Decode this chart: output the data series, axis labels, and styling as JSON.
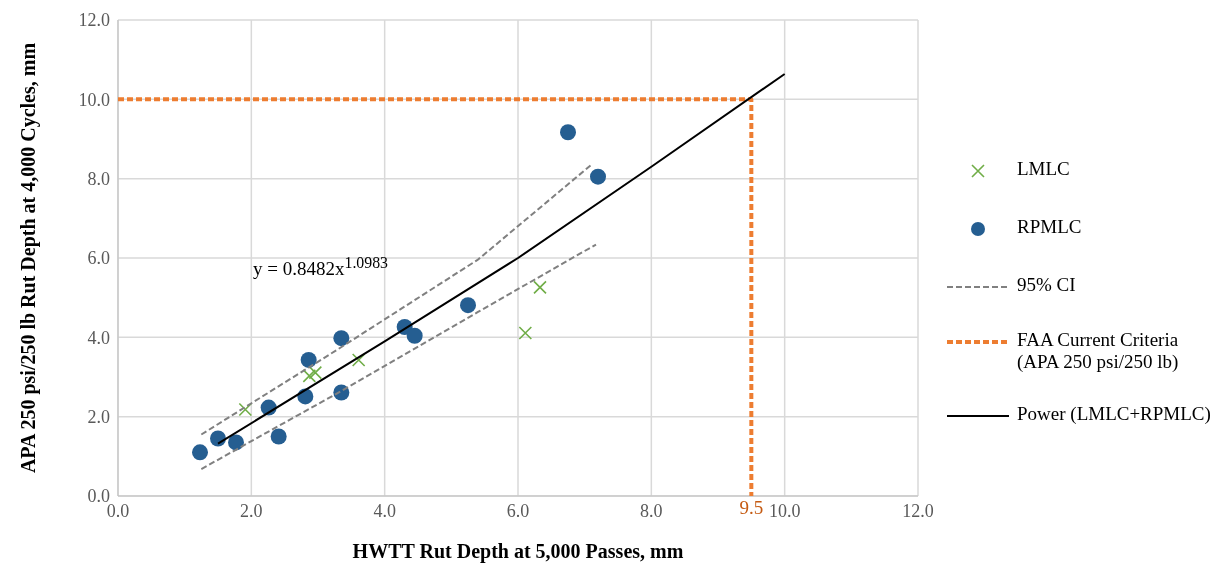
{
  "chart_data": {
    "type": "scatter",
    "xlabel": "HWTT Rut Depth at 5,000 Passes, mm",
    "ylabel": "APA 250 psi/250 lb Rut Depth at 4,000 Cycles, mm",
    "xlim": [
      0,
      12
    ],
    "ylim": [
      0,
      12
    ],
    "xticks": [
      {
        "value": 0,
        "label": "0.0"
      },
      {
        "value": 2,
        "label": "2.0"
      },
      {
        "value": 4,
        "label": "4.0"
      },
      {
        "value": 6,
        "label": "6.0"
      },
      {
        "value": 8,
        "label": "8.0"
      },
      {
        "value": 10,
        "label": "10.0"
      },
      {
        "value": 12,
        "label": "12.0"
      }
    ],
    "yticks": [
      {
        "value": 0,
        "label": "0.0"
      },
      {
        "value": 2,
        "label": "2.0"
      },
      {
        "value": 4,
        "label": "4.0"
      },
      {
        "value": 6,
        "label": "6.0"
      },
      {
        "value": 8,
        "label": "8.0"
      },
      {
        "value": 10,
        "label": "10.0"
      },
      {
        "value": 12,
        "label": "12.0"
      }
    ],
    "grid": true,
    "legend": "right",
    "series": [
      {
        "name": "LMLC",
        "marker": "cross",
        "color": "#70ad47",
        "x": [
          1.91,
          2.87,
          2.96,
          3.61,
          6.11,
          6.33
        ],
        "values": [
          2.18,
          3.03,
          3.11,
          3.43,
          4.11,
          5.26
        ]
      },
      {
        "name": "RPMLC",
        "marker": "circle",
        "color": "#255e91",
        "x": [
          1.23,
          1.5,
          1.77,
          2.26,
          2.41,
          2.81,
          2.86,
          3.35,
          3.35,
          4.3,
          4.45,
          5.25,
          6.75,
          7.2
        ],
        "values": [
          1.1,
          1.45,
          1.35,
          2.23,
          1.5,
          2.51,
          3.43,
          3.98,
          2.61,
          4.26,
          4.04,
          4.81,
          9.17,
          8.05
        ]
      },
      {
        "name": "95% CI",
        "type": "line",
        "line_style": "dashed",
        "marker": "none",
        "color": "#808080",
        "x": [
          1.25,
          3.3,
          5.4,
          7.1
        ],
        "values": [
          1.55,
          3.7,
          5.96,
          8.35
        ]
      },
      {
        "type": "line",
        "line_style": "dashed",
        "marker": "none",
        "color": "#808080",
        "x": [
          1.25,
          3.3,
          5.4,
          7.17
        ],
        "values": [
          0.68,
          2.6,
          4.64,
          6.34
        ]
      },
      {
        "name": "FAA Current Criteria (APA 250 psi/250 lb)",
        "type": "line",
        "line_style": "dashed",
        "marker": "none",
        "color": "#ed7d31",
        "x": [
          0,
          9.5,
          9.5
        ],
        "values": [
          10,
          10,
          0
        ]
      },
      {
        "name": "Power (LMLC+RPMLC)",
        "type": "line",
        "line_style": "solid",
        "marker": "none",
        "color": "#000000",
        "x": [
          1.5,
          4,
          6,
          8,
          10
        ],
        "values": [
          1.32,
          3.9,
          6.0,
          8.3,
          10.64
        ]
      }
    ],
    "annotations": [
      "y = 0.8482x$^{1.0983}$",
      {
        "text": "9.5",
        "x": 9.5,
        "y": 0
      }
    ]
  }
}
